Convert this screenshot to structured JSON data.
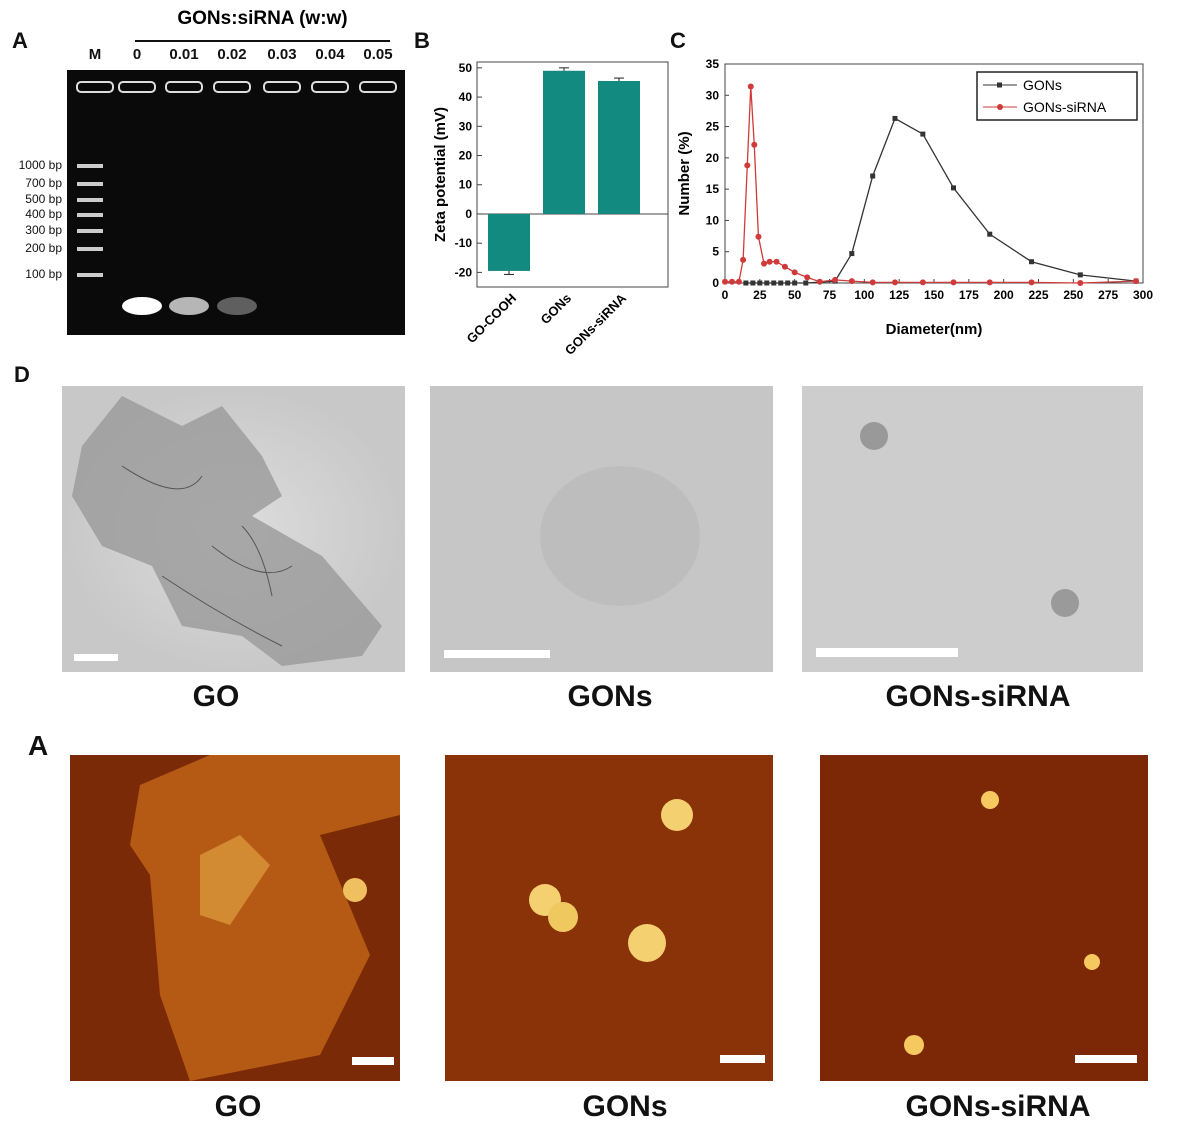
{
  "panels": {
    "a": "A",
    "b": "B",
    "c": "C",
    "d": "D",
    "a2": "A"
  },
  "gel": {
    "title": "GONs:siRNA (w:w)",
    "lanes": [
      "M",
      "0",
      "0.01",
      "0.02",
      "0.03",
      "0.04",
      "0.05"
    ],
    "ladder": [
      "1000 bp",
      "700 bp",
      "500 bp",
      "400 bp",
      "300 bp",
      "200 bp",
      "100 bp"
    ],
    "band_intensity": [
      0,
      1,
      0.7,
      0.35,
      0,
      0,
      0
    ]
  },
  "tem": {
    "labels": [
      "GO",
      "GONs",
      "GONs-siRNA"
    ]
  },
  "afm": {
    "labels": [
      "GO",
      "GONs",
      "GONs-siRNA"
    ]
  },
  "chart_data": [
    {
      "type": "bar",
      "categories": [
        "GO-COOH",
        "GONs",
        "GONs-siRNA"
      ],
      "values": [
        -19.5,
        49,
        45.5
      ],
      "errors": [
        1.2,
        1,
        1
      ],
      "ylabel": "Zeta potential (mV)",
      "xlabel": "",
      "ylim": [
        -25,
        52
      ],
      "yticks": [
        -20,
        -10,
        0,
        10,
        20,
        30,
        40,
        50
      ],
      "color": "#138a80"
    },
    {
      "type": "line",
      "xlabel": "Diameter(nm)",
      "ylabel": "Number (%)",
      "xlim": [
        0,
        300
      ],
      "ylim": [
        0,
        35
      ],
      "xticks": [
        0,
        25,
        50,
        75,
        100,
        125,
        150,
        175,
        200,
        225,
        250,
        275,
        300
      ],
      "yticks": [
        0,
        5,
        10,
        15,
        20,
        25,
        30,
        35
      ],
      "legend": "top-right",
      "series": [
        {
          "name": "GONs",
          "color": "#333333",
          "marker": "square",
          "points": [
            [
              15,
              0
            ],
            [
              20,
              0
            ],
            [
              25,
              0
            ],
            [
              30,
              0
            ],
            [
              35,
              0
            ],
            [
              40,
              0
            ],
            [
              45,
              0
            ],
            [
              50,
              0
            ],
            [
              58,
              0
            ],
            [
              79,
              0.3
            ],
            [
              91,
              4.7
            ],
            [
              106,
              17.1
            ],
            [
              122,
              26.3
            ],
            [
              142,
              23.8
            ],
            [
              164,
              15.2
            ],
            [
              190,
              7.8
            ],
            [
              220,
              3.4
            ],
            [
              255,
              1.3
            ],
            [
              295,
              0.3
            ]
          ]
        },
        {
          "name": "GONs-siRNA",
          "color": "#d03a3a",
          "marker": "circle",
          "points": [
            [
              0,
              0.2
            ],
            [
              5,
              0.2
            ],
            [
              10,
              0.2
            ],
            [
              13,
              3.7
            ],
            [
              16,
              18.8
            ],
            [
              18.5,
              31.4
            ],
            [
              21,
              22.1
            ],
            [
              24,
              7.4
            ],
            [
              28,
              3.1
            ],
            [
              32,
              3.4
            ],
            [
              37,
              3.4
            ],
            [
              43,
              2.6
            ],
            [
              50,
              1.7
            ],
            [
              59,
              0.9
            ],
            [
              68,
              0.2
            ],
            [
              79,
              0.5
            ],
            [
              91,
              0.3
            ],
            [
              106,
              0.1
            ],
            [
              122,
              0.1
            ],
            [
              142,
              0.1
            ],
            [
              164,
              0.1
            ],
            [
              190,
              0.1
            ],
            [
              220,
              0.1
            ],
            [
              255,
              0
            ],
            [
              295,
              0.3
            ]
          ]
        }
      ]
    }
  ]
}
